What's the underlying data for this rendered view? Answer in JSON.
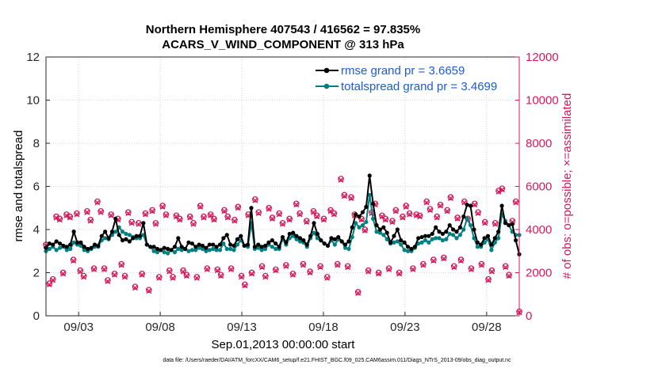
{
  "title_line1": "Northern Hemisphere 407543 / 416562 = 97.835%",
  "title_line2": "ACARS_V_WIND_COMPONENT @ 313 hPa",
  "footer": "data file: /Users/raeder/DAI/ATM_forcXX/CAM6_setup/f.e21.FHIST_BGC.f09_025.CAM6assim.011/Diags_NTrS_2013-09/obs_diag_output.nc",
  "colors": {
    "rmse": "#000000",
    "spread": "#008080",
    "obs": "#d6195b",
    "legend_text": "#1a5cd6"
  },
  "chart_data": {
    "type": "line",
    "xlabel": "Sep.01,2013 00:00:00 start",
    "ylabel_left": "rmse and totalspread",
    "ylabel_right": "# of obs: o=possible; ×=assimilated",
    "xlim": [
      1.0,
      30.0
    ],
    "ylim_left": [
      0,
      12
    ],
    "ylim_right": [
      0,
      12000
    ],
    "x_ticks": [
      3,
      8,
      13,
      18,
      23,
      28
    ],
    "x_tick_labels": [
      "09/03",
      "09/08",
      "09/13",
      "09/18",
      "09/23",
      "09/28"
    ],
    "yticks_left": [
      "0",
      "2",
      "4",
      "6",
      "8",
      "10",
      "12"
    ],
    "yticks_right": [
      "0",
      "2000",
      "4000",
      "6000",
      "8000",
      "10000",
      "12000"
    ],
    "legend_position": "top-right",
    "series": [
      {
        "name": "rmse grand pr = 3.6659",
        "axis": "left",
        "values": [
          3.15,
          3.35,
          3.3,
          3.45,
          3.35,
          3.25,
          3.2,
          3.3,
          3.9,
          3.4,
          3.4,
          3.2,
          3.1,
          3.15,
          3.3,
          3.25,
          3.7,
          3.9,
          3.6,
          3.9,
          4.5,
          3.75,
          3.5,
          3.55,
          3.45,
          3.6,
          3.7,
          3.7,
          4.3,
          3.3,
          3.2,
          3.2,
          3.1,
          3.05,
          3.15,
          3.1,
          3.05,
          3.2,
          3.6,
          3.2,
          3.1,
          3.4,
          3.35,
          3.2,
          3.3,
          3.25,
          3.15,
          3.3,
          3.3,
          3.2,
          3.3,
          3.6,
          3.75,
          3.3,
          3.25,
          3.55,
          3.7,
          3.25,
          3.3,
          5.0,
          3.2,
          3.3,
          3.2,
          3.25,
          3.4,
          3.5,
          3.35,
          3.2,
          3.65,
          3.4,
          3.8,
          3.85,
          3.7,
          3.6,
          3.5,
          3.3,
          3.7,
          4.3,
          3.8,
          3.5,
          3.35,
          3.25,
          3.6,
          3.55,
          3.65,
          3.45,
          3.3,
          3.45,
          4.1,
          4.7,
          4.6,
          4.8,
          5.05,
          6.5,
          5.2,
          4.2,
          4.0,
          4.1,
          3.85,
          3.4,
          3.7,
          4.0,
          3.5,
          3.4,
          3.2,
          3.1,
          3.2,
          3.6,
          3.65,
          3.7,
          3.7,
          3.8,
          4.1,
          3.9,
          3.8,
          3.9,
          4.2,
          4.0,
          3.9,
          4.1,
          4.6,
          5.15,
          5.1,
          4.0,
          3.4,
          3.3,
          3.6,
          3.7,
          3.3,
          3.6,
          3.9,
          5.1,
          4.3,
          4.2,
          4.25,
          3.5,
          2.85
        ]
      },
      {
        "name": "totalspread grand pr = 3.4699",
        "axis": "left",
        "values": [
          3.0,
          3.1,
          3.2,
          3.05,
          3.15,
          3.2,
          3.05,
          3.1,
          3.4,
          3.3,
          3.25,
          3.05,
          3.0,
          3.1,
          3.2,
          3.2,
          3.5,
          3.6,
          3.55,
          3.75,
          3.9,
          4.1,
          3.9,
          3.8,
          3.75,
          3.65,
          3.6,
          3.6,
          3.75,
          3.3,
          3.2,
          3.0,
          2.95,
          3.05,
          2.95,
          2.9,
          3.05,
          2.95,
          3.1,
          3.05,
          3.1,
          3.0,
          3.05,
          3.05,
          3.15,
          3.1,
          3.0,
          3.05,
          3.1,
          3.05,
          3.05,
          3.35,
          3.1,
          3.1,
          3.05,
          3.3,
          3.5,
          3.25,
          3.2,
          4.3,
          3.1,
          3.15,
          3.05,
          3.1,
          3.3,
          3.2,
          3.1,
          3.1,
          3.55,
          3.3,
          3.6,
          3.7,
          3.55,
          3.45,
          3.4,
          3.2,
          3.6,
          3.85,
          3.6,
          3.5,
          3.35,
          3.25,
          3.5,
          3.3,
          3.55,
          3.45,
          3.15,
          3.1,
          3.65,
          4.3,
          4.1,
          4.2,
          4.35,
          5.6,
          4.5,
          3.9,
          3.85,
          3.75,
          3.55,
          3.35,
          3.4,
          3.45,
          3.3,
          3.05,
          3.0,
          3.0,
          3.15,
          3.35,
          3.4,
          3.5,
          3.4,
          3.55,
          3.6,
          3.6,
          3.5,
          3.55,
          3.8,
          3.75,
          3.6,
          3.75,
          4.0,
          4.5,
          4.2,
          3.6,
          3.2,
          3.2,
          3.4,
          3.55,
          3.05,
          3.4,
          3.6,
          4.7,
          4.4,
          4.2,
          3.9,
          3.75,
          3.75
        ]
      },
      {
        "name": "obs possible",
        "axis": "right",
        "marker": "o",
        "values": [
          3300,
          1500,
          1700,
          4600,
          4500,
          2000,
          4700,
          4600,
          2600,
          4750,
          2100,
          1850,
          4850,
          4450,
          2200,
          5300,
          4850,
          2200,
          1650,
          4700,
          1950,
          4500,
          2400,
          1850,
          4800,
          4350,
          1350,
          4300,
          1950,
          4750,
          1200,
          4900,
          4300,
          1800,
          5100,
          4700,
          2100,
          1800,
          4650,
          4500,
          2100,
          1900,
          4600,
          4300,
          1800,
          5100,
          4600,
          2200,
          4700,
          4500,
          2150,
          1900,
          4900,
          4600,
          2200,
          4450,
          5050,
          1850,
          1450,
          4700,
          2000,
          5400,
          4800,
          2300,
          1850,
          5000,
          4550,
          2150,
          4750,
          4300,
          2350,
          4500,
          1950,
          5200,
          4750,
          2400,
          4400,
          2050,
          4850,
          4650,
          2300,
          4500,
          1800,
          4900,
          4750,
          2400,
          6350,
          5600,
          2300,
          5500,
          4700,
          1100,
          4500,
          4000,
          2100,
          4800,
          5200,
          2000,
          4650,
          4500,
          2200,
          4400,
          4900,
          2000,
          4600,
          5100,
          4750,
          2200,
          4700,
          4650,
          2400,
          5300,
          4950,
          2600,
          4600,
          5150,
          2700,
          4900,
          5500,
          2300,
          4550,
          2600,
          5300,
          4500,
          2200,
          5200,
          4800,
          2400,
          4350,
          1700,
          2100,
          4300,
          5800,
          5900,
          2300,
          1900,
          4400,
          5300,
          200
        ]
      },
      {
        "name": "obs assimilated",
        "axis": "right",
        "marker": "x",
        "values": [
          3250,
          1450,
          1650,
          4550,
          4450,
          1950,
          4650,
          4550,
          2550,
          4700,
          2050,
          1800,
          4800,
          4400,
          2150,
          5250,
          4800,
          2150,
          1600,
          4650,
          1900,
          4450,
          2350,
          1800,
          4750,
          4300,
          1300,
          4250,
          1900,
          4700,
          1150,
          4850,
          4250,
          1750,
          5050,
          4650,
          2050,
          1750,
          4600,
          4450,
          2050,
          1850,
          4550,
          4250,
          1750,
          5050,
          4550,
          2150,
          4650,
          4450,
          2100,
          1850,
          4850,
          4550,
          2150,
          4400,
          5000,
          1800,
          1400,
          4650,
          1950,
          5350,
          4750,
          2250,
          1800,
          4950,
          4500,
          2100,
          4700,
          4250,
          2300,
          4450,
          1900,
          5150,
          4700,
          2350,
          4350,
          2000,
          4800,
          4600,
          2250,
          4450,
          1750,
          4850,
          4700,
          2350,
          6300,
          5550,
          2250,
          5450,
          4650,
          1050,
          4450,
          3950,
          2050,
          4750,
          5150,
          1950,
          4600,
          4450,
          2150,
          4350,
          4850,
          1950,
          4550,
          5050,
          4700,
          2150,
          4650,
          4600,
          2350,
          5250,
          4900,
          2550,
          4550,
          5100,
          2650,
          4850,
          5450,
          2250,
          4500,
          2550,
          5250,
          4450,
          2150,
          5150,
          4750,
          2350,
          4300,
          1650,
          2050,
          4250,
          5750,
          5850,
          2250,
          1850,
          4350,
          5250,
          150
        ]
      }
    ]
  }
}
